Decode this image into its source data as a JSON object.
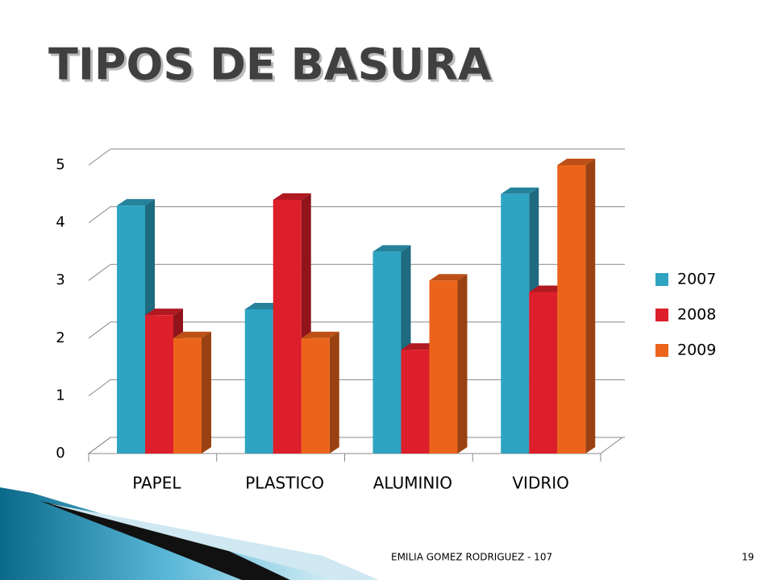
{
  "chart_data": {
    "type": "bar3d",
    "title": "TIPOS DE BASURA",
    "categories": [
      "PAPEL",
      "PLASTICO",
      "ALUMINIO",
      "VIDRIO"
    ],
    "series": [
      {
        "name": "2007",
        "color": "#2ea3c2",
        "values": [
          4.3,
          2.5,
          3.5,
          4.5
        ]
      },
      {
        "name": "2008",
        "color": "#dc1f2a",
        "values": [
          2.4,
          4.4,
          1.8,
          2.8
        ]
      },
      {
        "name": "2009",
        "color": "#ec641c",
        "values": [
          2.0,
          2.0,
          3.0,
          5.0
        ]
      }
    ],
    "ylim": [
      0,
      5
    ],
    "yticks": [
      0,
      1,
      2,
      3,
      4,
      5
    ],
    "grid": true,
    "legend": "right"
  },
  "footer": "EMILIA GOMEZ RODRIGUEZ - 107",
  "page_number": "19"
}
